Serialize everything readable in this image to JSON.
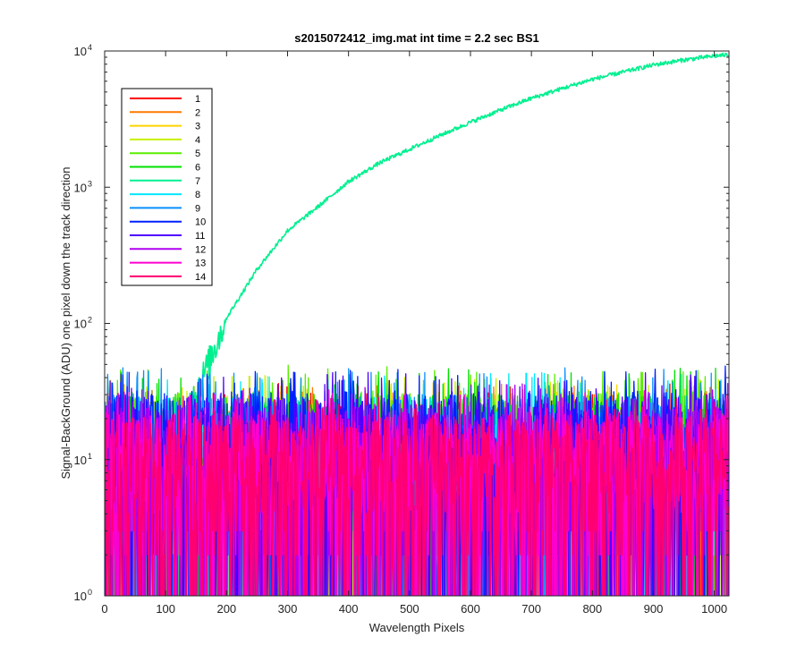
{
  "chart_data": {
    "type": "line",
    "title": "s2015072412_img.mat int time = 2.2 sec   BS1",
    "xlabel": "Wavelength Pixels",
    "ylabel": "Signal-BackGround (ADU) one pixel down the track direction",
    "xlim": [
      0,
      1024
    ],
    "ylim": [
      1,
      10000
    ],
    "yscale": "log",
    "grid": false,
    "legend_position": "top-left",
    "x_ticks": [
      0,
      100,
      200,
      300,
      400,
      500,
      600,
      700,
      800,
      900,
      1000
    ],
    "y_ticks": [
      {
        "base": "10",
        "exp": "0",
        "value": 1
      },
      {
        "base": "10",
        "exp": "1",
        "value": 10
      },
      {
        "base": "10",
        "exp": "2",
        "value": 100
      },
      {
        "base": "10",
        "exp": "3",
        "value": 1000
      },
      {
        "base": "10",
        "exp": "4",
        "value": 10000
      }
    ],
    "series": [
      {
        "name": "1",
        "color": "#ff0000",
        "noise_peak": 33
      },
      {
        "name": "2",
        "color": "#ff7a00",
        "noise_peak": 33
      },
      {
        "name": "3",
        "color": "#ffd400",
        "noise_peak": 35
      },
      {
        "name": "4",
        "color": "#c8f000",
        "noise_peak": 38
      },
      {
        "name": "5",
        "color": "#5aee00",
        "noise_peak": 45
      },
      {
        "name": "6",
        "color": "#00e000",
        "noise_peak": 43
      },
      {
        "name": "7",
        "color": "#00f090",
        "noise_peak": 30,
        "signal": {
          "x": [
            0,
            60,
            100,
            130,
            160,
            200,
            250,
            300,
            350,
            400,
            450,
            500,
            550,
            600,
            650,
            700,
            750,
            800,
            850,
            900,
            950,
            1000,
            1024
          ],
          "y": [
            3,
            5,
            10,
            20,
            40,
            110,
            250,
            480,
            720,
            1100,
            1500,
            1900,
            2400,
            3000,
            3700,
            4500,
            5300,
            6200,
            7000,
            7900,
            8600,
            9200,
            9400
          ]
        }
      },
      {
        "name": "8",
        "color": "#00e8ff",
        "noise_peak": 40
      },
      {
        "name": "9",
        "color": "#0a90ff",
        "noise_peak": 43
      },
      {
        "name": "10",
        "color": "#0020ff",
        "noise_peak": 45
      },
      {
        "name": "11",
        "color": "#5000ff",
        "noise_peak": 40
      },
      {
        "name": "12",
        "color": "#b000f0",
        "noise_peak": 33
      },
      {
        "name": "13",
        "color": "#ff00d0",
        "noise_peak": 30
      },
      {
        "name": "14",
        "color": "#ff0070",
        "noise_peak": 28
      }
    ]
  }
}
